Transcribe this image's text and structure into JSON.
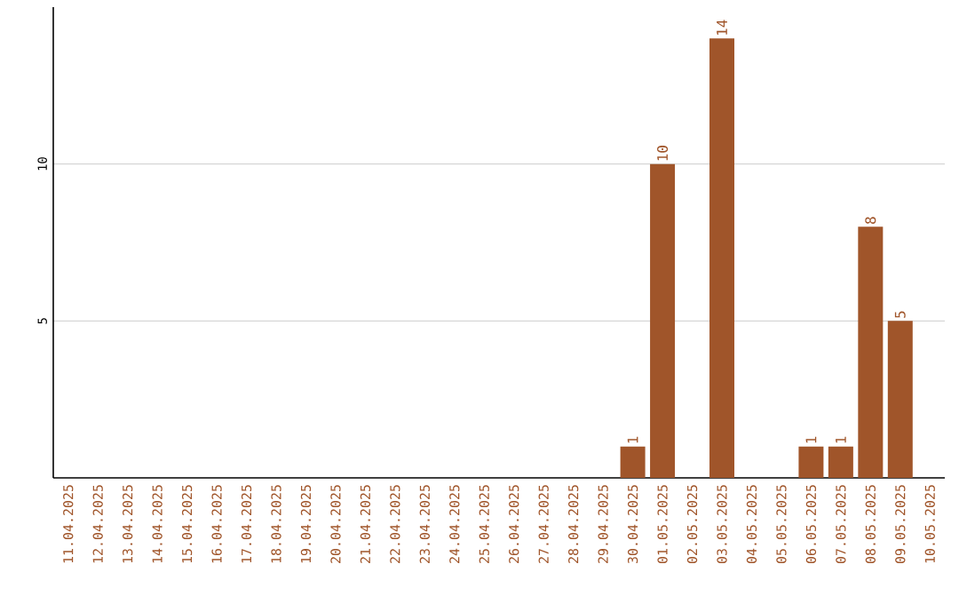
{
  "chart_data": {
    "type": "bar",
    "categories": [
      "11.04.2025",
      "12.04.2025",
      "13.04.2025",
      "14.04.2025",
      "15.04.2025",
      "16.04.2025",
      "17.04.2025",
      "18.04.2025",
      "19.04.2025",
      "20.04.2025",
      "21.04.2025",
      "22.04.2025",
      "23.04.2025",
      "24.04.2025",
      "25.04.2025",
      "26.04.2025",
      "27.04.2025",
      "28.04.2025",
      "29.04.2025",
      "30.04.2025",
      "01.05.2025",
      "02.05.2025",
      "03.05.2025",
      "04.05.2025",
      "05.05.2025",
      "06.05.2025",
      "07.05.2025",
      "08.05.2025",
      "09.05.2025",
      "10.05.2025"
    ],
    "values": [
      0,
      0,
      0,
      0,
      0,
      0,
      0,
      0,
      0,
      0,
      0,
      0,
      0,
      0,
      0,
      0,
      0,
      0,
      0,
      1,
      10,
      0,
      14,
      0,
      0,
      1,
      1,
      8,
      5,
      0
    ],
    "value_labels": [
      null,
      null,
      null,
      null,
      null,
      null,
      null,
      null,
      null,
      null,
      null,
      null,
      null,
      null,
      null,
      null,
      null,
      null,
      null,
      "1",
      "10",
      null,
      "14",
      null,
      null,
      "1",
      "1",
      "8",
      "5",
      null
    ],
    "color": "#a0552a",
    "ylim": [
      0,
      15
    ],
    "yticks": [
      5,
      10
    ],
    "grid": "y"
  }
}
